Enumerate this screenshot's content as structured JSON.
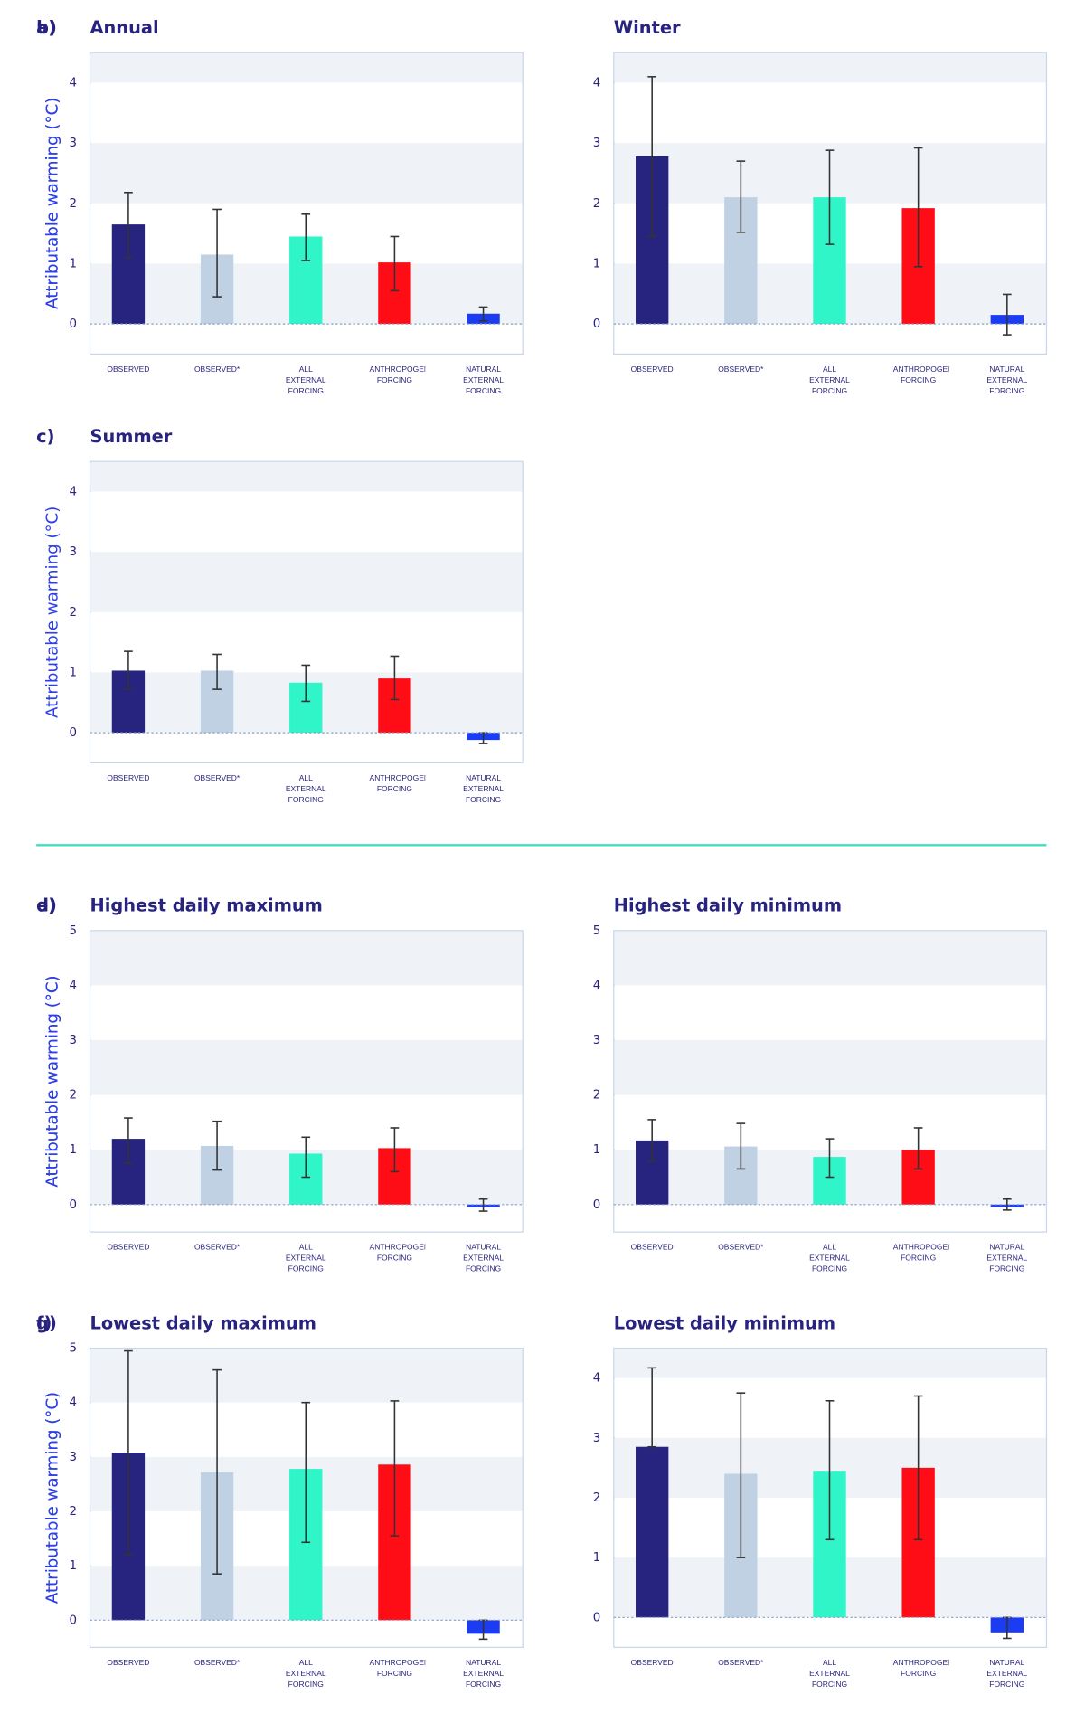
{
  "chart_data": [
    {
      "type": "bar",
      "label": "a)",
      "title": "Annual",
      "y_label": "Attributable warming (°C)",
      "categories": [
        "OBSERVED",
        "OBSERVED*",
        "ALL EXTERNAL FORCING",
        "ANTHROPOGENIC FORCING",
        "NATURAL EXTERNAL FORCING"
      ],
      "colors": [
        "#27247f",
        "#bfd1e3",
        "#2ff5c9",
        "#ff0d17",
        "#1b3cf0"
      ],
      "values": [
        1.65,
        1.15,
        1.45,
        1.02,
        0.17
      ],
      "error_low": [
        1.1,
        0.45,
        1.05,
        0.55,
        0.05
      ],
      "error_high": [
        2.18,
        1.9,
        1.82,
        1.45,
        0.28
      ],
      "ylim": [
        -0.5,
        4.5
      ],
      "yticks": [
        0,
        1,
        2,
        3,
        4
      ],
      "shaded_bands": true
    },
    {
      "type": "bar",
      "label": "b)",
      "title": "Winter",
      "y_label": "Attributable warming (°C)",
      "categories": [
        "OBSERVED",
        "OBSERVED*",
        "ALL EXTERNAL FORCING",
        "ANTHROPOGENIC FORCING",
        "NATURAL EXTERNAL FORCING"
      ],
      "colors": [
        "#27247f",
        "#bfd1e3",
        "#2ff5c9",
        "#ff0d17",
        "#1b3cf0"
      ],
      "values": [
        2.78,
        2.1,
        2.1,
        1.92,
        0.15
      ],
      "error_low": [
        1.45,
        1.52,
        1.32,
        0.95,
        -0.18
      ],
      "error_high": [
        4.1,
        2.7,
        2.88,
        2.92,
        0.49
      ],
      "ylim": [
        -0.5,
        4.5
      ],
      "yticks": [
        0,
        1,
        2,
        3,
        4
      ],
      "shaded_bands": true
    },
    {
      "type": "bar",
      "label": "c)",
      "title": "Summer",
      "y_label": "Attributable warming (°C)",
      "categories": [
        "OBSERVED",
        "OBSERVED*",
        "ALL EXTERNAL FORCING",
        "ANTHROPOGENIC FORCING",
        "NATURAL EXTERNAL FORCING"
      ],
      "colors": [
        "#27247f",
        "#bfd1e3",
        "#2ff5c9",
        "#ff0d17",
        "#1b3cf0"
      ],
      "values": [
        1.03,
        1.03,
        0.83,
        0.9,
        -0.12
      ],
      "error_low": [
        0.72,
        0.72,
        0.52,
        0.55,
        -0.18
      ],
      "error_high": [
        1.35,
        1.3,
        1.12,
        1.27,
        0.0
      ],
      "ylim": [
        -0.5,
        4.5
      ],
      "yticks": [
        0,
        1,
        2,
        3,
        4
      ],
      "shaded_bands": true
    },
    {
      "type": "bar",
      "label": "d)",
      "title": "Highest daily maximum",
      "y_label": "Attributable warming (°C)",
      "categories": [
        "OBSERVED",
        "OBSERVED*",
        "ALL EXTERNAL FORCING",
        "ANTHROPOGENIC FORCING",
        "NATURAL EXTERNAL FORCING"
      ],
      "colors": [
        "#27247f",
        "#bfd1e3",
        "#2ff5c9",
        "#ff0d17",
        "#1b3cf0"
      ],
      "values": [
        1.2,
        1.07,
        0.93,
        1.03,
        -0.05
      ],
      "error_low": [
        0.75,
        0.63,
        0.5,
        0.6,
        -0.12
      ],
      "error_high": [
        1.58,
        1.52,
        1.23,
        1.4,
        0.1
      ],
      "ylim": [
        -0.5,
        5
      ],
      "yticks": [
        0,
        1,
        2,
        3,
        4,
        5
      ],
      "shaded_bands": true
    },
    {
      "type": "bar",
      "label": "e)",
      "title": "Highest daily minimum",
      "y_label": "Attributable warming (°C)",
      "categories": [
        "OBSERVED",
        "OBSERVED*",
        "ALL EXTERNAL FORCING",
        "ANTHROPOGENIC FORCING",
        "NATURAL EXTERNAL FORCING"
      ],
      "colors": [
        "#27247f",
        "#bfd1e3",
        "#2ff5c9",
        "#ff0d17",
        "#1b3cf0"
      ],
      "values": [
        1.17,
        1.06,
        0.87,
        1.0,
        -0.05
      ],
      "error_low": [
        0.8,
        0.65,
        0.5,
        0.65,
        -0.1
      ],
      "error_high": [
        1.55,
        1.48,
        1.2,
        1.4,
        0.1
      ],
      "ylim": [
        -0.5,
        5
      ],
      "yticks": [
        0,
        1,
        2,
        3,
        4,
        5
      ],
      "shaded_bands": true
    },
    {
      "type": "bar",
      "label": "f)",
      "title": "Lowest daily maximum",
      "y_label": "Attributable warming (°C)",
      "categories": [
        "OBSERVED",
        "OBSERVED*",
        "ALL EXTERNAL FORCING",
        "ANTHROPOGENIC FORCING",
        "NATURAL EXTERNAL FORCING"
      ],
      "colors": [
        "#27247f",
        "#bfd1e3",
        "#2ff5c9",
        "#ff0d17",
        "#1b3cf0"
      ],
      "values": [
        3.08,
        2.72,
        2.78,
        2.86,
        -0.25
      ],
      "error_low": [
        1.2,
        0.85,
        1.43,
        1.55,
        -0.35
      ],
      "error_high": [
        4.95,
        4.6,
        4.0,
        4.03,
        0.0
      ],
      "ylim": [
        -0.5,
        5
      ],
      "yticks": [
        0,
        1,
        2,
        3,
        4,
        5
      ],
      "shaded_bands": true
    },
    {
      "type": "bar",
      "label": "g)",
      "title": "Lowest daily minimum",
      "y_label": "Attributable warming (°C)",
      "categories": [
        "OBSERVED",
        "OBSERVED*",
        "ALL EXTERNAL FORCING",
        "ANTHROPOGENIC FORCING",
        "NATURAL EXTERNAL FORCING"
      ],
      "colors": [
        "#27247f",
        "#bfd1e3",
        "#2ff5c9",
        "#ff0d17",
        "#1b3cf0"
      ],
      "values": [
        2.85,
        2.4,
        2.45,
        2.5,
        -0.25
      ],
      "error_low": [
        2.85,
        1.0,
        1.3,
        1.3,
        -0.35
      ],
      "error_high": [
        4.17,
        3.75,
        3.62,
        3.7,
        0.0
      ],
      "ylim": [
        -0.5,
        4.5
      ],
      "yticks": [
        0,
        1,
        2,
        3,
        4
      ],
      "shaded_bands": true
    }
  ]
}
